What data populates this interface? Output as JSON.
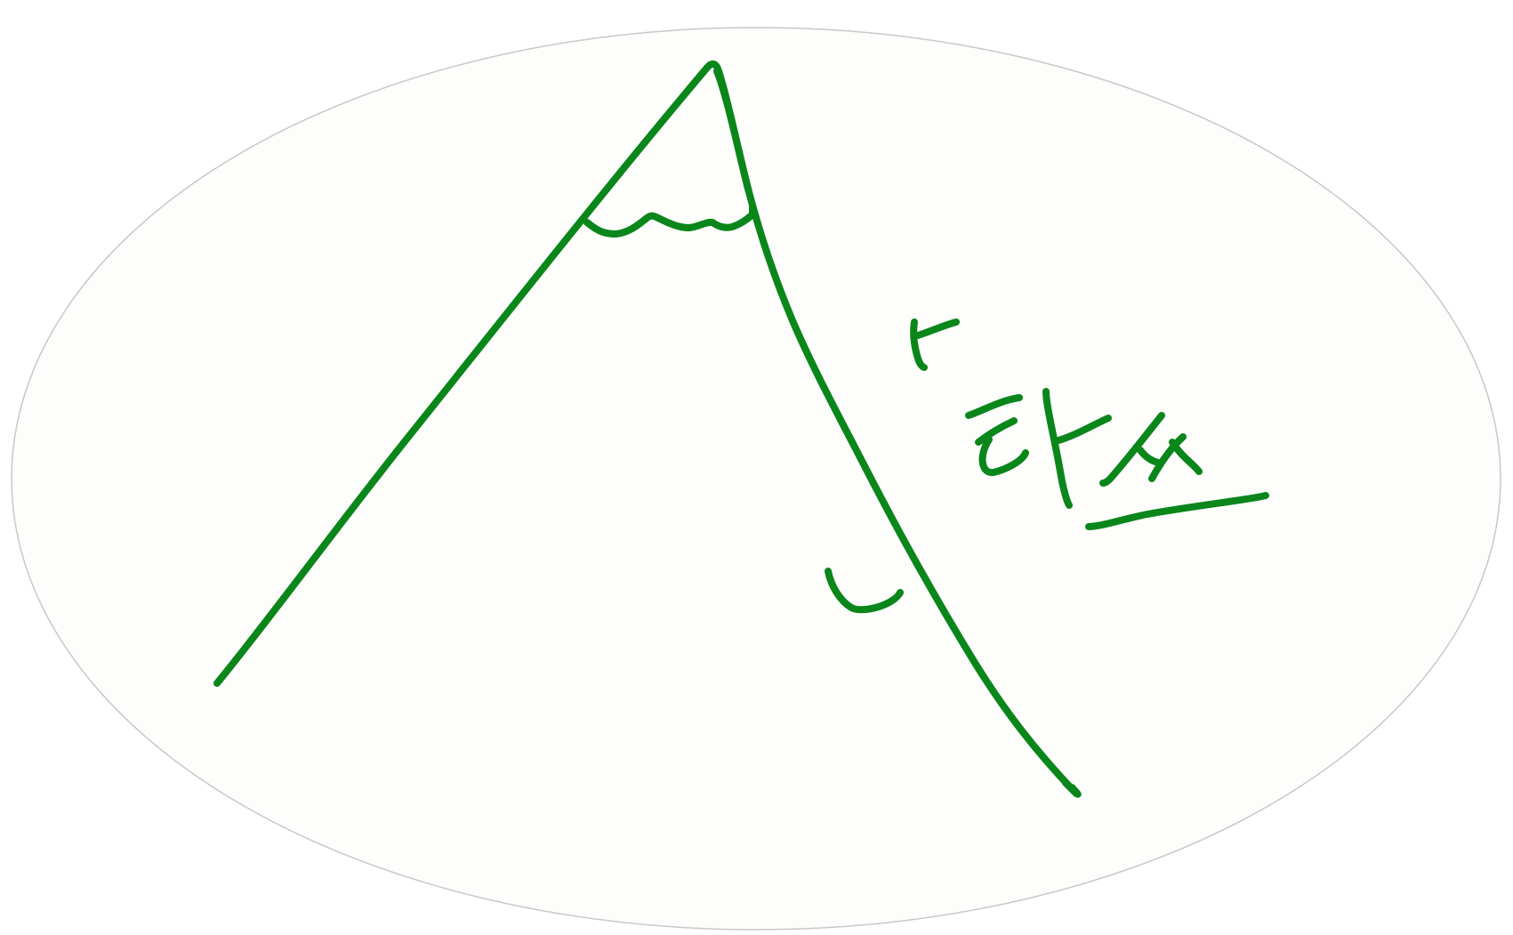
{
  "badge": {
    "background_color": "#fdfdfb",
    "outline_color": "#c8c8c8"
  },
  "drawing": {
    "ink_color": "#0a861a",
    "subject": "mountain-doodle",
    "handwritten_text": "ㅗ 탄생"
  }
}
